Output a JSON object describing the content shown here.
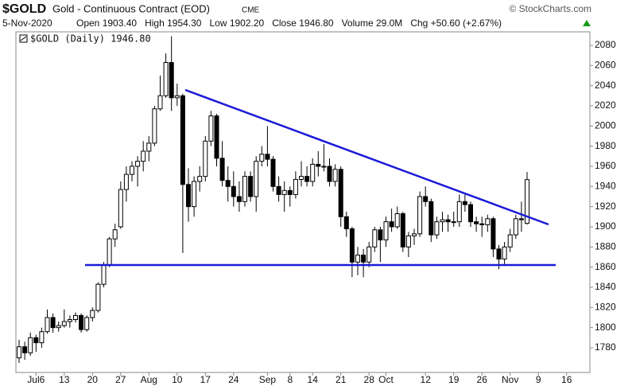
{
  "header": {
    "symbol": "$GOLD",
    "name": "Gold - Continuous Contract (EOD)",
    "exchange": "CME",
    "copyright": "© StockCharts.com",
    "date": "5-Nov-2020",
    "stats": [
      "Open 1903.40",
      "High 1954.30",
      "Low 1902.20",
      "Close 1946.80",
      "Volume 29.0M",
      "Chg +50.60 (+2.67%)"
    ]
  },
  "chart_data": {
    "type": "candlestick",
    "legend_label": "$GOLD (Daily) 1946.80",
    "up_color": "#ffffff",
    "down_color": "#000000",
    "line_color": "#000000",
    "categories": [
      null,
      null,
      null,
      "Jul6",
      null,
      null,
      null,
      null,
      "13",
      null,
      null,
      null,
      null,
      "20",
      null,
      null,
      null,
      null,
      "27",
      null,
      null,
      null,
      null,
      "Aug",
      null,
      null,
      null,
      null,
      "10",
      null,
      null,
      null,
      null,
      "17",
      null,
      null,
      null,
      null,
      "24",
      null,
      null,
      null,
      null,
      null,
      "Sep",
      null,
      null,
      null,
      "8",
      null,
      null,
      null,
      "14",
      null,
      null,
      null,
      null,
      "21",
      null,
      null,
      null,
      null,
      "28",
      null,
      null,
      "Oct",
      null,
      null,
      null,
      null,
      null,
      null,
      "12",
      null,
      null,
      null,
      null,
      "19",
      null,
      null,
      null,
      null,
      "26",
      null,
      null,
      null,
      null,
      "Nov",
      null,
      null,
      null,
      null,
      "9",
      null,
      null,
      null,
      null,
      "16"
    ],
    "open": [
      1770,
      1781,
      1775,
      1790,
      1785,
      1796,
      1810,
      1800,
      1802,
      1806,
      1808,
      1812,
      1798,
      1810,
      1817,
      1843,
      1862,
      1888,
      1900,
      1937,
      1952,
      1960,
      1965,
      1975,
      1983,
      2017,
      2030,
      2063,
      2028,
      2030,
      1942,
      1920,
      1945,
      1950,
      1985,
      2010,
      1968,
      1946,
      1940,
      1930,
      1925,
      1950,
      1930,
      1965,
      1972,
      1967,
      1940,
      1932,
      1936,
      1932,
      1947,
      1950,
      1945,
      1962,
      1960,
      1960,
      1945,
      1957,
      1910,
      1898,
      1865,
      1872,
      1865,
      1880,
      1897,
      1887,
      1905,
      1900,
      1913,
      1880,
      1891,
      1893,
      1930,
      1925,
      1892,
      1905,
      1907,
      1905,
      1905,
      1925,
      1922,
      1905,
      1903,
      1902,
      1908,
      1878,
      1868,
      1880,
      1892,
      1908,
      1903.4,
      null,
      null,
      null,
      null,
      null,
      null,
      null
    ],
    "high": [
      1788,
      1786,
      1795,
      1793,
      1800,
      1818,
      1814,
      1806,
      1818,
      1812,
      1815,
      1814,
      1812,
      1820,
      1845,
      1865,
      1890,
      1903,
      1945,
      1960,
      1965,
      1970,
      1985,
      1990,
      2020,
      2050,
      2072,
      2089,
      2042,
      2032,
      1958,
      1950,
      1960,
      1990,
      2015,
      2012,
      1985,
      1960,
      1955,
      1945,
      1955,
      1955,
      1970,
      1980,
      2000,
      1970,
      1950,
      1945,
      1940,
      1955,
      1965,
      1960,
      1968,
      1975,
      1982,
      1968,
      1962,
      1960,
      1915,
      1900,
      1880,
      1878,
      1885,
      1900,
      1900,
      1910,
      1918,
      1920,
      1915,
      1895,
      1898,
      1935,
      1940,
      1928,
      1910,
      1915,
      1912,
      1915,
      1932,
      1932,
      1925,
      1910,
      1910,
      1912,
      1910,
      1882,
      1885,
      1898,
      1912,
      1925,
      1954.3,
      null,
      null,
      null,
      null,
      null,
      null,
      null
    ],
    "low": [
      1765,
      1768,
      1772,
      1776,
      1780,
      1794,
      1795,
      1796,
      1800,
      1800,
      1805,
      1795,
      1796,
      1806,
      1815,
      1840,
      1860,
      1880,
      1898,
      1925,
      1945,
      1940,
      1955,
      1965,
      1980,
      2015,
      2028,
      2015,
      2020,
      1874,
      1905,
      1910,
      1935,
      1945,
      1980,
      1960,
      1940,
      1925,
      1920,
      1915,
      1920,
      1925,
      1915,
      1960,
      1960,
      1935,
      1925,
      1915,
      1920,
      1928,
      1940,
      1940,
      1940,
      1950,
      1955,
      1940,
      1940,
      1900,
      1890,
      1850,
      1852,
      1850,
      1860,
      1875,
      1865,
      1880,
      1895,
      1898,
      1875,
      1870,
      1882,
      1890,
      1920,
      1885,
      1888,
      1895,
      1895,
      1900,
      1900,
      1915,
      1900,
      1895,
      1890,
      1895,
      1870,
      1858,
      1862,
      1875,
      1888,
      1895,
      1902.2,
      null,
      null,
      null,
      null,
      null,
      null,
      null
    ],
    "close": [
      1781,
      1775,
      1790,
      1785,
      1796,
      1810,
      1800,
      1802,
      1806,
      1808,
      1812,
      1798,
      1810,
      1817,
      1843,
      1862,
      1888,
      1897,
      1937,
      1952,
      1960,
      1965,
      1975,
      1983,
      2017,
      2030,
      2063,
      2028,
      2030,
      1942,
      1920,
      1945,
      1950,
      1985,
      2010,
      1968,
      1946,
      1940,
      1930,
      1925,
      1950,
      1930,
      1965,
      1972,
      1967,
      1940,
      1932,
      1936,
      1932,
      1947,
      1950,
      1945,
      1962,
      1960,
      1960,
      1945,
      1957,
      1910,
      1898,
      1865,
      1872,
      1865,
      1880,
      1897,
      1887,
      1905,
      1900,
      1913,
      1880,
      1891,
      1893,
      1930,
      1925,
      1892,
      1905,
      1907,
      1905,
      1905,
      1925,
      1922,
      1905,
      1903,
      1902,
      1908,
      1878,
      1868,
      1880,
      1892,
      1908,
      1907,
      1946.8,
      null,
      null,
      null,
      null,
      null,
      null,
      null
    ],
    "ylim": [
      1755.5,
      2093.4
    ],
    "yticks": [
      1780,
      1800,
      1820,
      1840,
      1860,
      1880,
      1900,
      1920,
      1940,
      1960,
      1980,
      2000,
      2020,
      2040,
      2060,
      2080
    ],
    "grid": false
  }
}
